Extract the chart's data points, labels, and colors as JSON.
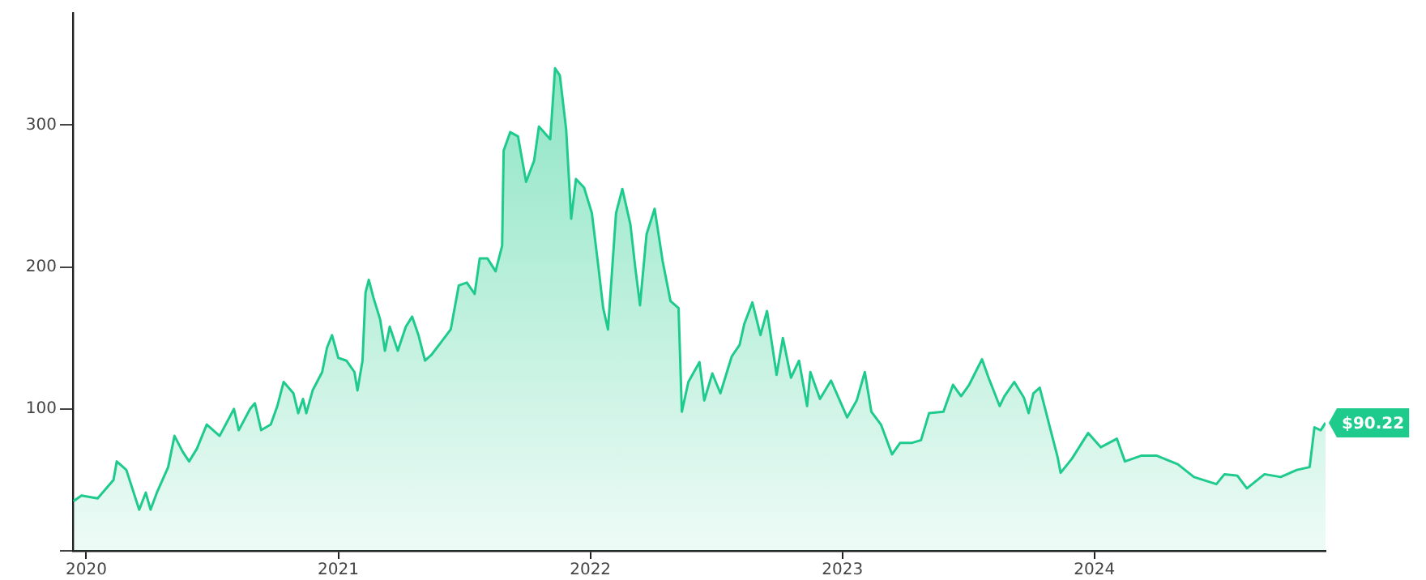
{
  "chart_data": {
    "type": "area",
    "x": [
      2019.949,
      2019.981,
      2020.045,
      2020.108,
      2020.121,
      2020.159,
      2020.21,
      2020.236,
      2020.255,
      2020.28,
      2020.325,
      2020.35,
      2020.382,
      2020.408,
      2020.439,
      2020.478,
      2020.529,
      2020.586,
      2020.605,
      2020.65,
      2020.669,
      2020.694,
      2020.732,
      2020.758,
      2020.783,
      2020.822,
      2020.841,
      2020.86,
      2020.873,
      2020.898,
      2020.936,
      2020.955,
      2020.975,
      2021.0,
      2021.032,
      2021.064,
      2021.076,
      2021.096,
      2021.108,
      2021.121,
      2021.14,
      2021.166,
      2021.185,
      2021.204,
      2021.236,
      2021.268,
      2021.293,
      2021.318,
      2021.344,
      2021.369,
      2021.408,
      2021.446,
      2021.478,
      2021.51,
      2021.541,
      2021.561,
      2021.592,
      2021.624,
      2021.65,
      2021.656,
      2021.682,
      2021.713,
      2021.745,
      2021.777,
      2021.796,
      2021.841,
      2021.86,
      2021.879,
      2021.904,
      2021.924,
      2021.943,
      2021.975,
      2022.006,
      2022.032,
      2022.051,
      2022.07,
      2022.102,
      2022.127,
      2022.159,
      2022.178,
      2022.197,
      2022.223,
      2022.255,
      2022.287,
      2022.318,
      2022.35,
      2022.363,
      2022.389,
      2022.433,
      2022.452,
      2022.484,
      2022.516,
      2022.561,
      2022.592,
      2022.611,
      2022.643,
      2022.675,
      2022.701,
      2022.739,
      2022.764,
      2022.796,
      2022.828,
      2022.86,
      2022.873,
      2022.911,
      2022.955,
      2023.019,
      2023.057,
      2023.089,
      2023.115,
      2023.153,
      2023.197,
      2023.229,
      2023.274,
      2023.312,
      2023.344,
      2023.401,
      2023.439,
      2023.471,
      2023.503,
      2023.554,
      2023.58,
      2023.624,
      2023.643,
      2023.682,
      2023.72,
      2023.739,
      2023.758,
      2023.783,
      2023.822,
      2023.854,
      2023.866,
      2023.911,
      2023.975,
      2024.025,
      2024.089,
      2024.121,
      2024.185,
      2024.248,
      2024.331,
      2024.395,
      2024.484,
      2024.516,
      2024.567,
      2024.605,
      2024.675,
      2024.739,
      2024.803,
      2024.854,
      2024.873,
      2024.898,
      2024.917
    ],
    "series": [
      {
        "color": "#1ecb8c",
        "values": [
          35,
          39,
          37,
          50,
          63,
          57,
          29,
          41,
          29,
          41,
          59,
          81,
          70,
          63,
          72,
          89,
          81,
          100,
          85,
          100,
          104,
          85,
          89,
          102,
          119,
          111,
          97,
          107,
          97,
          113,
          126,
          143,
          152,
          136,
          134,
          126,
          113,
          134,
          182,
          191,
          178,
          163,
          141,
          158,
          141,
          158,
          165,
          152,
          134,
          138,
          147,
          156,
          187,
          189,
          181,
          206,
          206,
          197,
          215,
          282,
          295,
          292,
          260,
          275,
          299,
          290,
          340,
          335,
          297,
          234,
          262,
          256,
          238,
          200,
          171,
          156,
          238,
          255,
          230,
          200,
          173,
          223,
          241,
          204,
          176,
          171,
          98,
          119,
          133,
          106,
          125,
          111,
          137,
          145,
          160,
          175,
          152,
          169,
          124,
          150,
          122,
          134,
          102,
          126,
          107,
          120,
          94,
          106,
          126,
          98,
          89,
          68,
          76,
          76,
          78,
          97,
          98,
          117,
          109,
          117,
          135,
          122,
          102,
          109,
          119,
          108,
          97,
          111,
          115,
          88,
          66,
          55,
          65,
          83,
          73,
          79,
          63,
          67,
          67,
          61,
          52,
          47,
          54,
          53,
          44,
          54,
          52,
          57,
          59,
          87,
          85,
          90.22
        ]
      }
    ],
    "xlim": [
      2019.947,
      2024.917
    ],
    "xticks": [
      2020,
      2021,
      2022,
      2023,
      2024
    ],
    "ylim": [
      0,
      379
    ],
    "yticks": [
      {
        "value": 0,
        "label": null
      },
      100,
      200,
      300
    ],
    "grid": false,
    "legend": false,
    "annotations": [
      {
        "text": "$90.22",
        "x": 2024.917,
        "y": 90.22
      }
    ]
  }
}
